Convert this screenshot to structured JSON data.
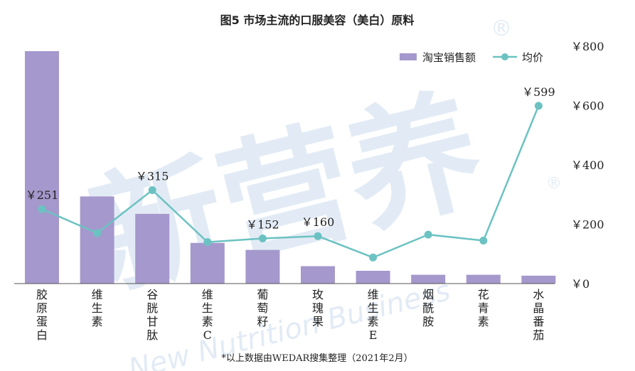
{
  "chart_data": {
    "type": "bar+line",
    "title": "图5  市场主流的口服美容（美白）原料",
    "categories": [
      "胶原蛋白",
      "维生素",
      "谷胱甘肽",
      "维生素C",
      "葡萄籽",
      "玫瑰果",
      "维生素E",
      "烟酰胺",
      "花青素",
      "水晶番茄"
    ],
    "bar_series": {
      "name": "淘宝销售额",
      "color": "#a598cc",
      "values": [
        100,
        37.5,
        30,
        17.5,
        14.5,
        7.5,
        5.5,
        3.8,
        3.8,
        3.4
      ]
    },
    "line_series": {
      "name": "均价",
      "color": "#6cc2c2",
      "values": [
        251,
        170,
        315,
        140,
        152,
        160,
        88,
        165,
        145,
        599
      ],
      "labels": [
        "￥251",
        "",
        "￥315",
        "",
        "￥152",
        "￥160",
        "",
        "",
        "",
        "￥599"
      ]
    },
    "y2_axis": {
      "ylim": [
        0,
        800
      ],
      "ticks": [
        0,
        200,
        400,
        600,
        800
      ],
      "tick_labels": [
        "￥0",
        "￥200",
        "￥400",
        "￥600",
        "￥800"
      ]
    },
    "legend_placement": "top-right",
    "grid": false,
    "footnote": "*以上数据由WEDAR搜集整理（2021年2月）"
  },
  "watermark": {
    "text": "新营养",
    "text_en": "New Nutrition Business",
    "mark": "®"
  }
}
